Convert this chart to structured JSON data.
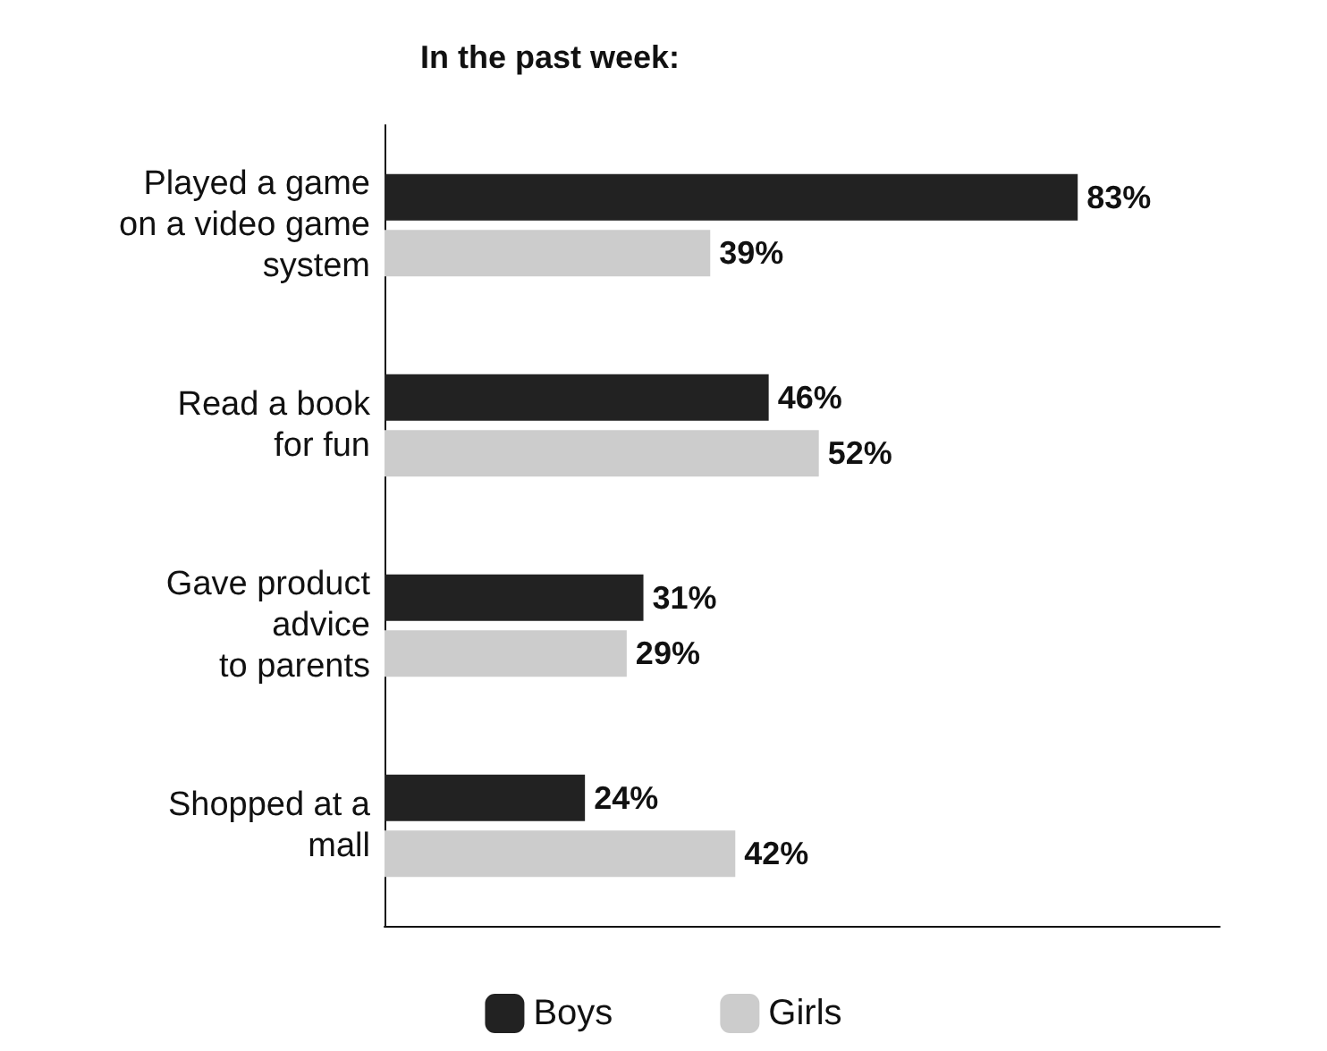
{
  "chart_data": {
    "type": "bar",
    "orientation": "horizontal",
    "title": "In the past week:",
    "categories": [
      "Played a game\non a video game\nsystem",
      "Read a book\nfor fun",
      "Gave product\nadvice\nto parents",
      "Shopped at a\nmall"
    ],
    "series": [
      {
        "name": "Boys",
        "color": "#222222",
        "values": [
          83,
          46,
          31,
          24
        ],
        "value_labels": [
          "83%",
          "46%",
          "31%",
          "24%"
        ]
      },
      {
        "name": "Girls",
        "color": "#cccccc",
        "values": [
          39,
          52,
          29,
          42
        ],
        "value_labels": [
          "39%",
          "52%",
          "29%",
          "42%"
        ]
      }
    ],
    "legend": "bottom",
    "tick_labels": "y",
    "grid": false
  }
}
